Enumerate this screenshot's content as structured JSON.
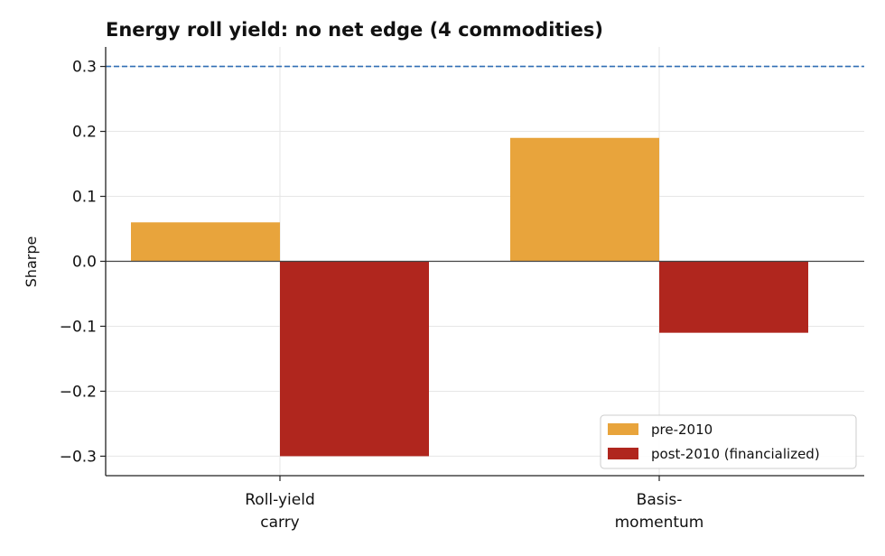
{
  "chart_data": {
    "type": "bar",
    "title": "Energy roll yield: no net edge (4 commodities)",
    "xlabel": "",
    "ylabel": "Sharpe",
    "categories": [
      [
        "Roll-yield",
        "carry"
      ],
      [
        "Basis-",
        "momentum"
      ]
    ],
    "series": [
      {
        "name": "pre-2010",
        "color": "#E8A43C",
        "values": [
          0.06,
          0.19
        ]
      },
      {
        "name": "post-2010 (financialized)",
        "color": "#B0261E",
        "values": [
          -0.3,
          -0.11
        ]
      }
    ],
    "ylim": [
      -0.33,
      0.33
    ],
    "yticks": [
      -0.3,
      -0.2,
      -0.1,
      0.0,
      0.1,
      0.2,
      0.3
    ],
    "ytick_labels": [
      "−0.3",
      "−0.2",
      "−0.1",
      "0.0",
      "0.1",
      "0.2",
      "0.3"
    ],
    "reference_line": {
      "y": 0.3,
      "color": "#2F6DB5",
      "style": "dashed"
    },
    "zero_line": true,
    "grid": true,
    "legend_position": "lower-right"
  }
}
